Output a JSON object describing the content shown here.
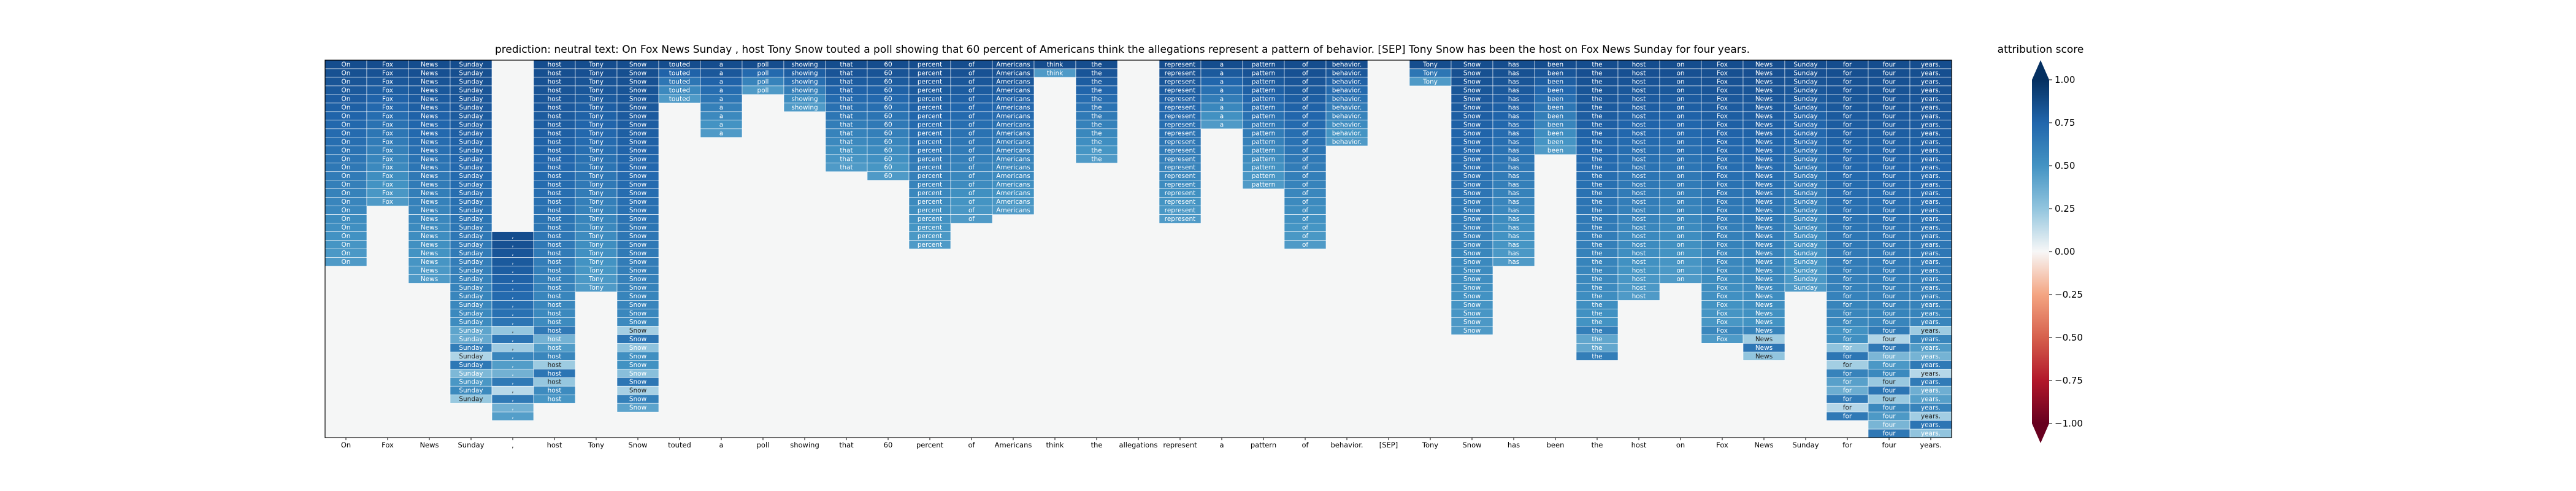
{
  "chart_data": {
    "type": "heatmap",
    "title": "prediction:  neutral     text:  On Fox News Sunday , host Tony Snow touted a poll showing that 60 percent of Americans think the allegations represent a pattern of behavior. [SEP] Tony Snow has been the host on Fox News Sunday for four years.",
    "tokens": [
      "On",
      "Fox",
      "News",
      "Sunday",
      ",",
      "host",
      "Tony",
      "Snow",
      "touted",
      "a",
      "poll",
      "showing",
      "that",
      "60",
      "percent",
      "of",
      "Americans",
      "think",
      "the",
      "allegations",
      "represent",
      "a",
      "pattern",
      "of",
      "behavior.",
      "[SEP]",
      "Tony",
      "Snow",
      "has",
      "been",
      "the",
      "host",
      "on",
      "Fox",
      "News",
      "Sunday",
      "for",
      "four",
      "years."
    ],
    "column_spans": [
      [
        0,
        24
      ],
      [
        0,
        17
      ],
      [
        0,
        26
      ],
      [
        0,
        40
      ],
      [
        20,
        42
      ],
      [
        0,
        40
      ],
      [
        0,
        27
      ],
      [
        0,
        41
      ],
      [
        0,
        5
      ],
      [
        0,
        9
      ],
      [
        0,
        4
      ],
      [
        0,
        6
      ],
      [
        0,
        13
      ],
      [
        0,
        14
      ],
      [
        0,
        22
      ],
      [
        0,
        19
      ],
      [
        0,
        18
      ],
      [
        0,
        2
      ],
      [
        0,
        12
      ],
      [
        0,
        0
      ],
      [
        0,
        19
      ],
      [
        0,
        8
      ],
      [
        0,
        15
      ],
      [
        0,
        22
      ],
      [
        0,
        10
      ],
      [
        0,
        0
      ],
      [
        0,
        3
      ],
      [
        0,
        32
      ],
      [
        0,
        24
      ],
      [
        0,
        11
      ],
      [
        0,
        35
      ],
      [
        0,
        28
      ],
      [
        0,
        26
      ],
      [
        0,
        33
      ],
      [
        0,
        35
      ],
      [
        0,
        27
      ],
      [
        0,
        42
      ],
      [
        0,
        44
      ],
      [
        0,
        44
      ]
    ],
    "rows": 44,
    "cell_values_note": "",
    "colorbar": {
      "label": "attribution score",
      "min": -1.0,
      "max": 1.0,
      "ticks": [
        "1.00",
        "0.75",
        "0.50",
        "0.25",
        "0.00",
        "−0.25",
        "−0.50",
        "−0.75",
        "−1.00"
      ],
      "colormap": "RdBu",
      "extend": "both"
    }
  },
  "colors": {
    "strong_positive": "#08306b",
    "mid_positive": "#2166ac",
    "neutral": "#f7f7f7",
    "strong_negative": "#67001f",
    "background": "#f5f6f6"
  }
}
